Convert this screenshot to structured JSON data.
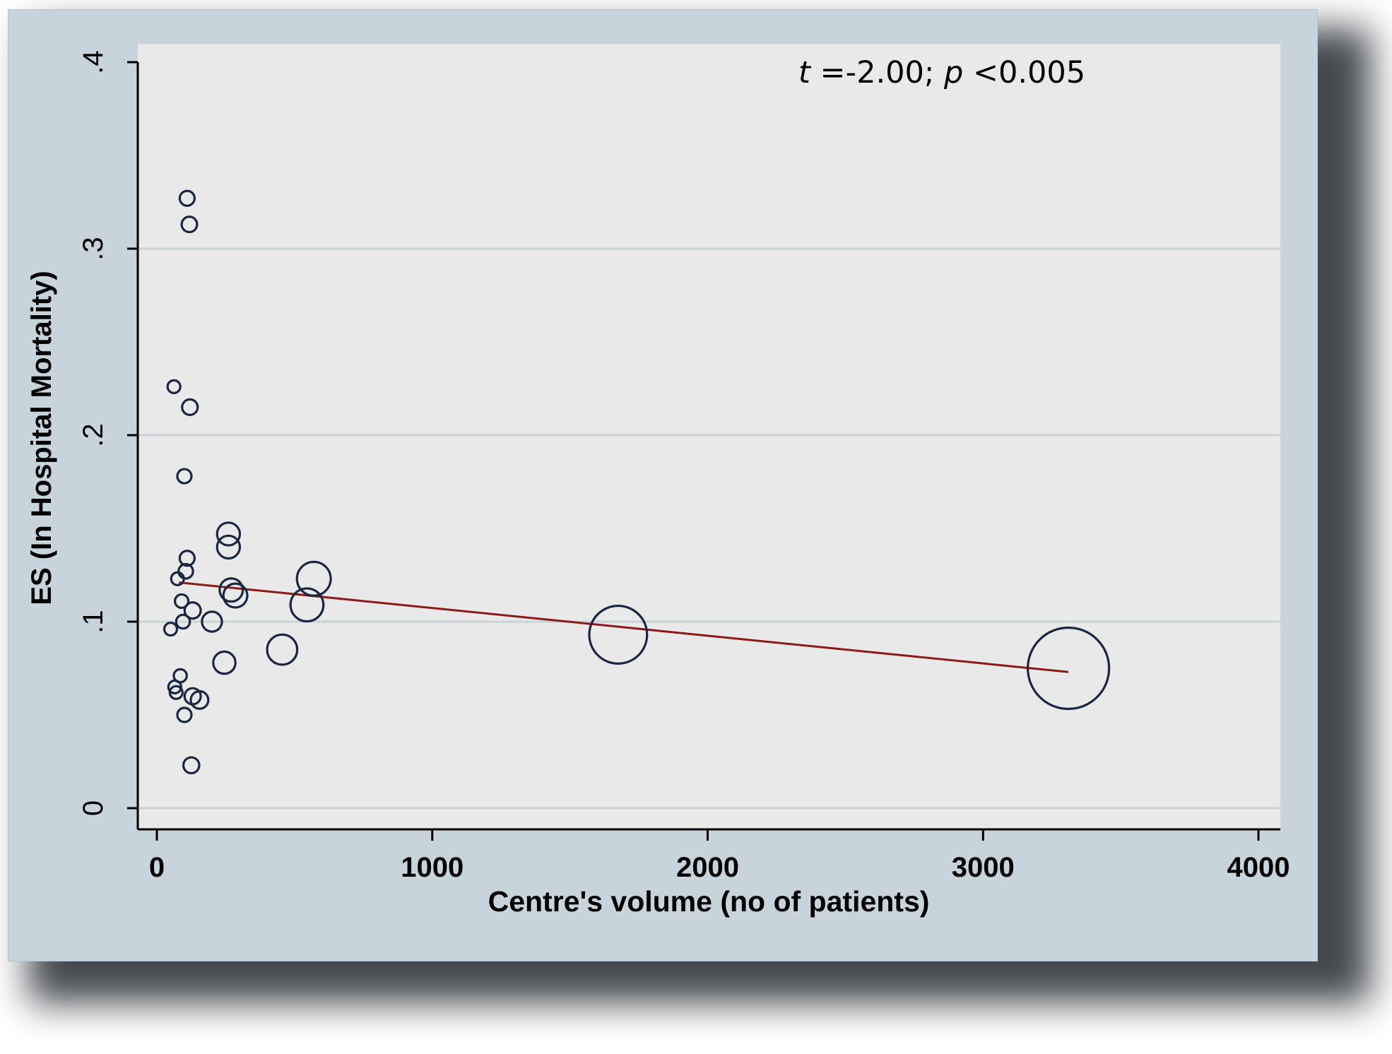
{
  "chart_data": {
    "type": "scatter",
    "title": "",
    "xlabel": "Centre's volume (no of patients)",
    "ylabel": "ES (In Hospital Mortality)",
    "xlim": [
      0,
      4000
    ],
    "ylim": [
      0,
      0.4
    ],
    "x_ticks": [
      0,
      1000,
      2000,
      3000,
      4000
    ],
    "x_tick_labels": [
      "0",
      "1000",
      "2000",
      "3000",
      "4000"
    ],
    "y_ticks": [
      0,
      0.1,
      0.2,
      0.3,
      0.4
    ],
    "y_tick_labels": [
      "0",
      ".1",
      ".2",
      ".3",
      ".4"
    ],
    "grid": "horizontal",
    "marker": "hollow circle sized by centre's volume",
    "colors": {
      "marker": "#1b2640",
      "fit_line": "#8b1a1a",
      "plot_bg": "#e9e9e9",
      "panel_bg": "#c8d4dc",
      "grid": "#c9d3d8"
    },
    "annotation": {
      "t_symbol": "t",
      "t_text": " =-2.00; ",
      "p_symbol": "p",
      "p_text": " <0.005"
    },
    "points": [
      {
        "x": 110,
        "y": 0.327
      },
      {
        "x": 118,
        "y": 0.313
      },
      {
        "x": 62,
        "y": 0.226
      },
      {
        "x": 120,
        "y": 0.215
      },
      {
        "x": 100,
        "y": 0.178
      },
      {
        "x": 260,
        "y": 0.147
      },
      {
        "x": 260,
        "y": 0.14
      },
      {
        "x": 110,
        "y": 0.134
      },
      {
        "x": 105,
        "y": 0.127
      },
      {
        "x": 75,
        "y": 0.123
      },
      {
        "x": 570,
        "y": 0.123
      },
      {
        "x": 270,
        "y": 0.117
      },
      {
        "x": 285,
        "y": 0.114
      },
      {
        "x": 90,
        "y": 0.111
      },
      {
        "x": 545,
        "y": 0.109
      },
      {
        "x": 130,
        "y": 0.106
      },
      {
        "x": 95,
        "y": 0.1
      },
      {
        "x": 200,
        "y": 0.1
      },
      {
        "x": 50,
        "y": 0.096
      },
      {
        "x": 1675,
        "y": 0.093
      },
      {
        "x": 455,
        "y": 0.085
      },
      {
        "x": 245,
        "y": 0.078
      },
      {
        "x": 3310,
        "y": 0.075
      },
      {
        "x": 85,
        "y": 0.071
      },
      {
        "x": 65,
        "y": 0.065
      },
      {
        "x": 70,
        "y": 0.062
      },
      {
        "x": 130,
        "y": 0.06
      },
      {
        "x": 155,
        "y": 0.058
      },
      {
        "x": 100,
        "y": 0.05
      },
      {
        "x": 125,
        "y": 0.023
      }
    ],
    "fit_line": {
      "x": [
        80,
        3310
      ],
      "y": [
        0.121,
        0.073
      ]
    }
  }
}
